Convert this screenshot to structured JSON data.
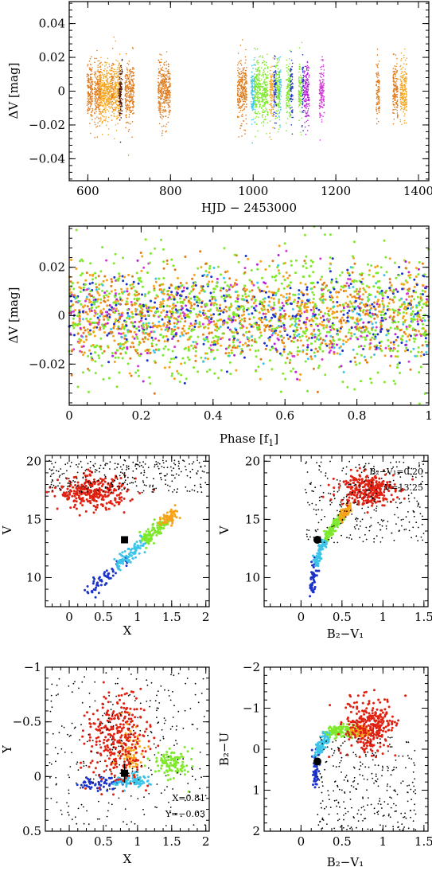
{
  "chart_data": [
    {
      "id": "lightcurve",
      "type": "scatter",
      "xlabel": "HJD − 2453000",
      "ylabel": "ΔV [mag]",
      "xlim": [
        555,
        1425
      ],
      "ylim": [
        0.053,
        -0.053
      ],
      "xticks": [
        600,
        800,
        1000,
        1200,
        1400
      ],
      "yticks": [
        -0.04,
        -0.02,
        0,
        0.02,
        0.04
      ],
      "ytick_labels": [
        "−0.04",
        "−0.02",
        "0",
        "0.02",
        "0.04"
      ],
      "scatter": 0.02,
      "series": [
        {
          "color": "#e07a1a",
          "segments": [
            [
              598,
              612
            ],
            [
              616,
              632
            ],
            [
              656,
              662
            ],
            [
              690,
              712
            ],
            [
              770,
              800
            ],
            [
              962,
              985
            ],
            [
              1298,
              1306
            ],
            [
              1338,
              1350
            ]
          ]
        },
        {
          "color": "#f7a318",
          "segments": [
            [
              628,
              656
            ],
            [
              662,
              680
            ],
            [
              1040,
              1050
            ],
            [
              1356,
              1372
            ]
          ]
        },
        {
          "color": "#4a1000",
          "segments": [
            [
              675,
              684
            ]
          ]
        },
        {
          "color": "#3cc5e8",
          "segments": [
            [
              995,
              1005
            ],
            [
              1062,
              1068
            ]
          ]
        },
        {
          "color": "#7ee82a",
          "segments": [
            [
              1003,
              1018
            ],
            [
              1020,
              1036
            ],
            [
              1054,
              1064
            ],
            [
              1080,
              1090
            ],
            [
              1110,
              1118
            ]
          ]
        },
        {
          "color": "#1c33c9",
          "segments": [
            [
              1050,
              1056
            ],
            [
              1090,
              1096
            ],
            [
              1118,
              1122
            ]
          ]
        },
        {
          "color": "#b722d6",
          "segments": [
            [
              1123,
              1136
            ]
          ]
        },
        {
          "color": "#d43bd6",
          "segments": [
            [
              1160,
              1172
            ]
          ]
        }
      ]
    },
    {
      "id": "phase",
      "type": "scatter",
      "xlabel": "Phase [f",
      "xlabel_sub": "1",
      "xlabel_end": "]",
      "ylabel": "ΔV [mag]",
      "xlim": [
        0,
        1
      ],
      "ylim": [
        0.037,
        -0.037
      ],
      "xticks": [
        0,
        0.2,
        0.4,
        0.6,
        0.8,
        1
      ],
      "xtick_labels": [
        "0",
        "0.2",
        "0.4",
        "0.6",
        "0.8",
        "1"
      ],
      "yticks": [
        -0.02,
        0,
        0.02
      ],
      "ytick_labels": [
        "−0.02",
        "0",
        "0.02"
      ],
      "colors": [
        "#7ee82a",
        "#f7a318",
        "#e07a1a",
        "#1c33c9",
        "#3cc5e8",
        "#d43bd6",
        "#b722d6"
      ]
    },
    {
      "id": "cmd-v-x",
      "type": "scatter",
      "xlabel": "X",
      "ylabel": "V",
      "xlim": [
        -0.35,
        2.05
      ],
      "ylim": [
        20.5,
        7.5
      ],
      "xticks": [
        0,
        0.5,
        1,
        1.5,
        2
      ],
      "xtick_labels": [
        "0",
        "0.5",
        "1",
        "1.5",
        "2"
      ],
      "yticks": [
        10,
        15,
        20
      ],
      "ytick_labels": [
        "10",
        "15",
        "20"
      ],
      "highlight": {
        "x": 0.81,
        "y": 13.25
      }
    },
    {
      "id": "cmd-v-bv",
      "type": "scatter",
      "xlabel": "B₂−V₁",
      "ylabel": "V",
      "xlim": [
        -0.45,
        1.55
      ],
      "ylim": [
        20.5,
        7.5
      ],
      "xticks": [
        0,
        0.5,
        1,
        1.5
      ],
      "xtick_labels": [
        "0",
        "0.5",
        "1",
        "1.5"
      ],
      "yticks": [
        10,
        15,
        20
      ],
      "ytick_labels": [
        "10",
        "15",
        "20"
      ],
      "highlight": {
        "x": 0.2,
        "y": 13.25
      },
      "annotations": [
        "B₂−V₁=0.20",
        "V=13.25"
      ]
    },
    {
      "id": "ccd-y-x",
      "type": "scatter",
      "xlabel": "X",
      "ylabel": "Y",
      "xlim": [
        -0.35,
        2.05
      ],
      "ylim": [
        -1.0,
        0.5
      ],
      "xticks": [
        0,
        0.5,
        1,
        1.5,
        2
      ],
      "xtick_labels": [
        "0",
        "0.5",
        "1",
        "1.5",
        "2"
      ],
      "yticks": [
        -1,
        -0.5,
        0,
        0.5
      ],
      "ytick_labels": [
        "−1",
        "−0.5",
        "0",
        "0.5"
      ],
      "highlight": {
        "x": 0.81,
        "y": -0.03
      },
      "annotations": [
        "X=0.81",
        "Y=−0.03"
      ]
    },
    {
      "id": "ccd-bu-bv",
      "type": "scatter",
      "xlabel": "B₂−V₁",
      "ylabel": "B₂−U",
      "xlim": [
        -0.45,
        1.55
      ],
      "ylim": [
        -2,
        2
      ],
      "xticks": [
        0,
        0.5,
        1,
        1.5
      ],
      "xtick_labels": [
        "0",
        "0.5",
        "1",
        "1.5"
      ],
      "yticks": [
        -2,
        -1,
        0,
        1,
        2
      ],
      "ytick_labels": [
        "−2",
        "−1",
        "0",
        "1",
        "2"
      ],
      "highlight": {
        "x": 0.2,
        "y": 0.3
      }
    }
  ],
  "sequence_colors": {
    "blue": "#1c33c9",
    "cyan": "#3cc5e8",
    "green": "#7ee82a",
    "orange": "#f7a318",
    "red": "#e02010",
    "field": "#000000"
  }
}
